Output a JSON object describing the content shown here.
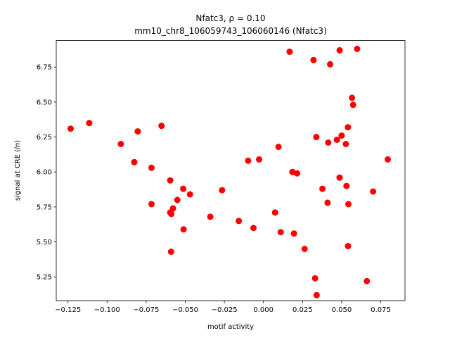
{
  "chart_data": {
    "type": "scatter",
    "title_line1": "Nfatc3, ρ = 0.10",
    "title_line2": "mm10_chr8_106059743_106060146 (Nfatc3)",
    "xlabel": "motif activity",
    "ylabel_main": "signal at CRE (",
    "ylabel_italic": "ln",
    "ylabel_end": ")",
    "xlim": [
      -0.1325,
      0.0905
    ],
    "ylim": [
      5.08,
      6.94
    ],
    "x_ticks": [
      -0.125,
      -0.1,
      -0.075,
      -0.05,
      -0.025,
      0.0,
      0.025,
      0.05,
      0.075
    ],
    "x_tick_labels": [
      "−0.125",
      "−0.100",
      "−0.075",
      "−0.050",
      "−0.025",
      "0.000",
      "0.025",
      "0.050",
      "0.075"
    ],
    "y_ticks": [
      5.25,
      5.5,
      5.75,
      6.0,
      6.25,
      6.5,
      6.75
    ],
    "y_tick_labels": [
      "5.25",
      "5.50",
      "5.75",
      "6.00",
      "6.25",
      "6.50",
      "6.75"
    ],
    "marker_color": "#ff0000",
    "points": [
      [
        -0.1233,
        6.31
      ],
      [
        -0.1114,
        6.35
      ],
      [
        -0.0912,
        6.2
      ],
      [
        -0.0804,
        6.29
      ],
      [
        -0.0826,
        6.07
      ],
      [
        -0.0716,
        6.03
      ],
      [
        -0.0716,
        5.77
      ],
      [
        -0.0652,
        6.33
      ],
      [
        -0.0596,
        5.94
      ],
      [
        -0.0596,
        5.71
      ],
      [
        -0.0589,
        5.7
      ],
      [
        -0.0578,
        5.74
      ],
      [
        -0.0551,
        5.8
      ],
      [
        -0.0513,
        5.88
      ],
      [
        -0.047,
        5.84
      ],
      [
        -0.0511,
        5.59
      ],
      [
        -0.0591,
        5.43
      ],
      [
        -0.034,
        5.68
      ],
      [
        -0.0265,
        5.87
      ],
      [
        -0.0158,
        5.65
      ],
      [
        -0.0098,
        6.08
      ],
      [
        -0.0064,
        5.6
      ],
      [
        -0.0028,
        6.09
      ],
      [
        0.0074,
        5.71
      ],
      [
        0.0096,
        6.18
      ],
      [
        0.011,
        5.57
      ],
      [
        0.0167,
        6.86
      ],
      [
        0.0185,
        6.0
      ],
      [
        0.0195,
        5.56
      ],
      [
        0.0215,
        5.99
      ],
      [
        0.0263,
        5.45
      ],
      [
        0.032,
        6.8
      ],
      [
        0.033,
        5.24
      ],
      [
        0.0338,
        6.25
      ],
      [
        0.034,
        5.12
      ],
      [
        0.0377,
        5.88
      ],
      [
        0.041,
        5.78
      ],
      [
        0.0414,
        6.21
      ],
      [
        0.0426,
        6.77
      ],
      [
        0.047,
        6.23
      ],
      [
        0.0487,
        6.87
      ],
      [
        0.0487,
        5.96
      ],
      [
        0.05,
        6.26
      ],
      [
        0.0527,
        6.2
      ],
      [
        0.0531,
        5.9
      ],
      [
        0.054,
        6.32
      ],
      [
        0.0543,
        5.77
      ],
      [
        0.0541,
        5.47
      ],
      [
        0.0566,
        6.53
      ],
      [
        0.0573,
        6.48
      ],
      [
        0.0599,
        6.88
      ],
      [
        0.0661,
        5.22
      ],
      [
        0.0701,
        5.86
      ],
      [
        0.0795,
        6.09
      ]
    ]
  }
}
